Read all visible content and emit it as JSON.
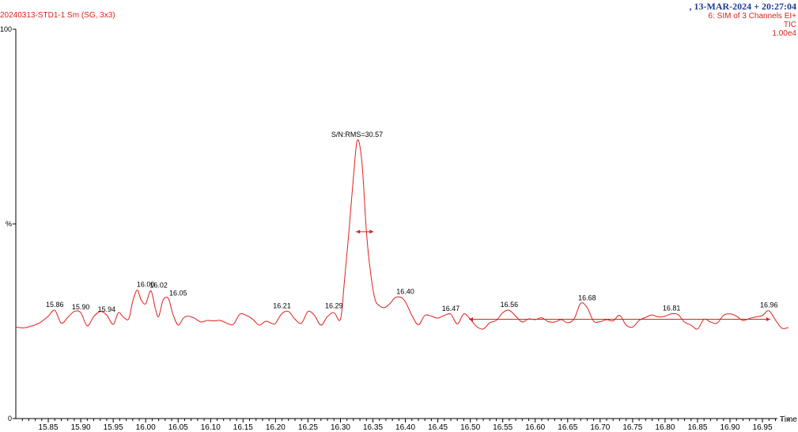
{
  "header": {
    "sample": "20240313-STD1-1 Sm (SG, 3x3)",
    "datetime": ", 13-MAR-2024 + 20:27:04",
    "channel": "6: SIM of 3 Channels EI+",
    "trace": "TIC",
    "scale": "1.00e4"
  },
  "colors": {
    "trace": "#e0201c",
    "axis": "#000000",
    "header_date": "#1f3a93"
  },
  "chart_data": {
    "type": "line",
    "title": "",
    "xlabel": "Time",
    "ylabel": "%",
    "xlim": [
      15.8,
      16.995
    ],
    "ylim": [
      0,
      100
    ],
    "y_ticks": [
      "0",
      "%",
      "100"
    ],
    "x_ticks": [
      "15.85",
      "15.90",
      "15.95",
      "16.00",
      "16.05",
      "16.10",
      "16.15",
      "16.20",
      "16.25",
      "16.30",
      "16.35",
      "16.40",
      "16.45",
      "16.50",
      "16.55",
      "16.60",
      "16.65",
      "16.70",
      "16.75",
      "16.80",
      "16.85",
      "16.90",
      "16.95"
    ],
    "series": [
      {
        "x": [
          15.8,
          15.812,
          15.825,
          15.837,
          15.85,
          15.86,
          15.87,
          15.88,
          15.89,
          15.9,
          15.91,
          15.92,
          15.93,
          15.94,
          15.95,
          15.958,
          15.966,
          15.974,
          15.98,
          15.987,
          15.993,
          16.0,
          16.008,
          16.015,
          16.02,
          16.027,
          16.035,
          16.042,
          16.05,
          16.058,
          16.065,
          16.075,
          16.085,
          16.095,
          16.105,
          16.115,
          16.125,
          16.135,
          16.145,
          16.155,
          16.165,
          16.175,
          16.185,
          16.195,
          16.2,
          16.21,
          16.22,
          16.23,
          16.24,
          16.25,
          16.26,
          16.27,
          16.28,
          16.29,
          16.3,
          16.306,
          16.313,
          16.32,
          16.326,
          16.333,
          16.34,
          16.346,
          16.353,
          16.36,
          16.368,
          16.376,
          16.384,
          16.392,
          16.4,
          16.41,
          16.42,
          16.43,
          16.44,
          16.45,
          16.46,
          16.47,
          16.48,
          16.49,
          16.5,
          16.51,
          16.52,
          16.53,
          16.54,
          16.55,
          16.56,
          16.57,
          16.58,
          16.59,
          16.6,
          16.61,
          16.62,
          16.63,
          16.64,
          16.65,
          16.66,
          16.67,
          16.68,
          16.69,
          16.7,
          16.71,
          16.72,
          16.73,
          16.74,
          16.75,
          16.76,
          16.77,
          16.78,
          16.79,
          16.8,
          16.81,
          16.82,
          16.83,
          16.84,
          16.85,
          16.86,
          16.87,
          16.88,
          16.89,
          16.9,
          16.91,
          16.92,
          16.93,
          16.94,
          16.95,
          16.96,
          16.97,
          16.98,
          16.99
        ],
        "y": [
          23.5,
          23.3,
          23.8,
          24.6,
          26.3,
          27.8,
          24.5,
          26,
          27.5,
          27.2,
          23.8,
          26.2,
          27.5,
          26.6,
          24.2,
          27.2,
          26,
          25.6,
          30.1,
          33,
          30.5,
          29.5,
          32.8,
          28.2,
          26.2,
          30.5,
          30.8,
          26.8,
          24,
          25.8,
          26.3,
          25.8,
          24.8,
          25.2,
          25.1,
          25.2,
          24.5,
          24.2,
          26.8,
          26.5,
          25.5,
          24,
          25,
          24.4,
          24.5,
          27,
          27.5,
          25.5,
          24.5,
          27.5,
          26.5,
          24,
          26.2,
          27.2,
          25.5,
          35,
          48,
          62,
          71.5,
          66,
          48,
          38,
          30.8,
          29,
          28.5,
          29.5,
          31,
          31.2,
          30,
          26.5,
          24.1,
          26.5,
          26.3,
          25.8,
          26.5,
          26.8,
          24.3,
          26.9,
          25.5,
          23.6,
          23,
          24.6,
          25.2,
          27.2,
          27.8,
          26.3,
          24.8,
          25.6,
          25.4,
          25.9,
          24.9,
          24.8,
          25.4,
          24.6,
          25.6,
          29.6,
          28.5,
          25,
          24.9,
          25.4,
          25.1,
          26.5,
          24,
          23.5,
          25.2,
          26,
          26.6,
          26.1,
          26.3,
          26.9,
          26.7,
          24.8,
          24,
          23,
          25.5,
          24.8,
          24.5,
          26.5,
          26.9,
          26.3,
          25.2,
          25.7,
          26.1,
          26.5,
          27.7,
          25.3,
          23.2,
          23.4
        ]
      }
    ],
    "peak_labels": [
      {
        "x": 15.86,
        "y": 27.8,
        "label": "15.86"
      },
      {
        "x": 15.9,
        "y": 27.2,
        "label": "15.90"
      },
      {
        "x": 15.94,
        "y": 26.6,
        "label": "15.94"
      },
      {
        "x": 16.0,
        "y": 33,
        "label": "16.00"
      },
      {
        "x": 16.02,
        "y": 32.8,
        "label": "16.02"
      },
      {
        "x": 16.05,
        "y": 30.8,
        "label": "16.05"
      },
      {
        "x": 16.21,
        "y": 27.5,
        "label": "16.21"
      },
      {
        "x": 16.29,
        "y": 27.5,
        "label": "16.29"
      },
      {
        "x": 16.4,
        "y": 31.2,
        "label": "16.40"
      },
      {
        "x": 16.47,
        "y": 26.8,
        "label": "16.47"
      },
      {
        "x": 16.56,
        "y": 27.8,
        "label": "16.56"
      },
      {
        "x": 16.68,
        "y": 29.6,
        "label": "16.68"
      },
      {
        "x": 16.81,
        "y": 26.9,
        "label": "16.81"
      },
      {
        "x": 16.96,
        "y": 27.7,
        "label": "16.96"
      }
    ],
    "annotations": [
      {
        "label": "S/N:RMS=30.57",
        "x": 16.333,
        "y": 71.5
      }
    ],
    "peak_width_marker": {
      "x": [
        16.324,
        16.351
      ],
      "y": 48
    },
    "noise_region_marker": {
      "x": [
        16.498,
        16.962
      ],
      "y": 25.5
    }
  }
}
